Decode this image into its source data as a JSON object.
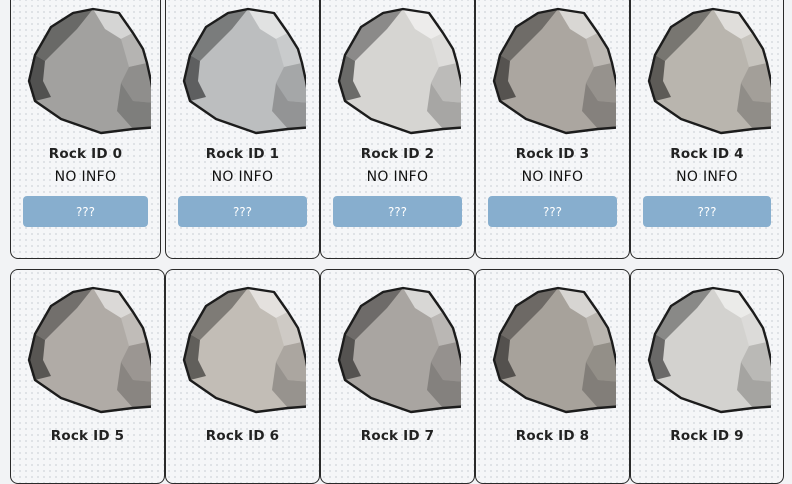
{
  "rocks": [
    {
      "name": "Rock ID 0",
      "info": "NO INFO",
      "button": "???",
      "color": "#a2a19f"
    },
    {
      "name": "Rock ID 1",
      "info": "NO INFO",
      "button": "???",
      "color": "#bcbebf"
    },
    {
      "name": "Rock ID 2",
      "info": "NO INFO",
      "button": "???",
      "color": "#d6d5d2"
    },
    {
      "name": "Rock ID 3",
      "info": "NO INFO",
      "button": "???",
      "color": "#aba6a0"
    },
    {
      "name": "Rock ID 4",
      "info": "NO INFO",
      "button": "???",
      "color": "#b9b5ae"
    },
    {
      "name": "Rock ID 5",
      "info": "",
      "button": "",
      "color": "#b0aba6"
    },
    {
      "name": "Rock ID 6",
      "info": "",
      "button": "",
      "color": "#c2bdb6"
    },
    {
      "name": "Rock ID 7",
      "info": "",
      "button": "",
      "color": "#a9a5a1"
    },
    {
      "name": "Rock ID 8",
      "info": "",
      "button": "",
      "color": "#a7a29b"
    },
    {
      "name": "Rock ID 9",
      "info": "",
      "button": "",
      "color": "#d3d2cf"
    }
  ]
}
